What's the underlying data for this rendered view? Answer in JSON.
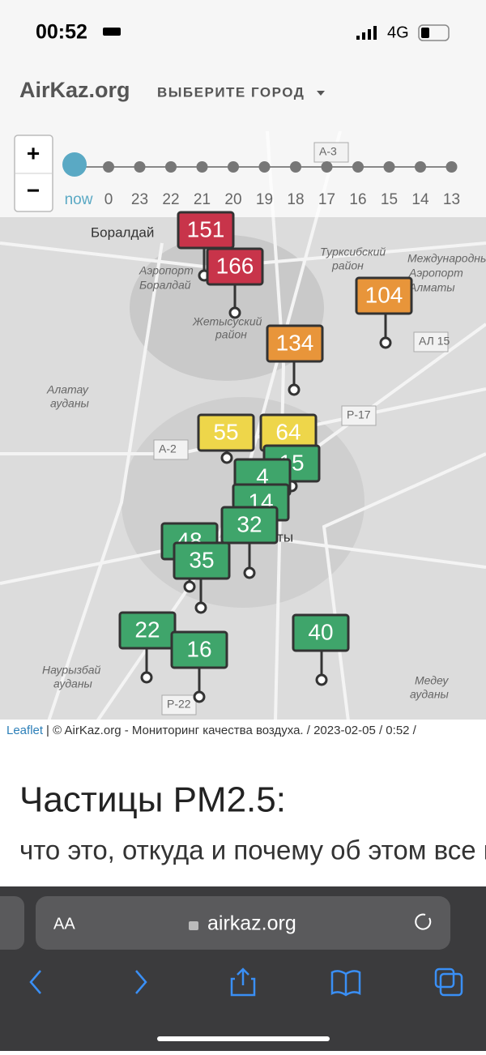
{
  "status_bar": {
    "time": "00:52",
    "network": "4G"
  },
  "header": {
    "logo": "AirKaz.org",
    "city_select": "ВЫБЕРИТЕ ГОРОД"
  },
  "zoom": {
    "plus": "+",
    "minus": "−"
  },
  "timeline": {
    "labels": [
      "now",
      "0",
      "23",
      "22",
      "21",
      "20",
      "19",
      "18",
      "17",
      "16",
      "15",
      "14",
      "13"
    ]
  },
  "map_labels": [
    "Боралдай",
    "Аэропорт",
    "Боралдай",
    "Турксибский",
    "район",
    "Международный",
    "Аэропорт",
    "Алматы",
    "Жетысуский",
    "район",
    "Алатау",
    "ауданы",
    "А-3",
    "А-2",
    "Р-17",
    "АЛ 15",
    "Алматы",
    "Наурызбай",
    "ауданы",
    "Медеу",
    "ауданы",
    "Р-22"
  ],
  "markers": [
    {
      "value": 151,
      "color": "#c8344a"
    },
    {
      "value": 166,
      "color": "#c8344a"
    },
    {
      "value": 104,
      "color": "#e8953a"
    },
    {
      "value": 134,
      "color": "#e8953a"
    },
    {
      "value": 55,
      "color": "#eed64a"
    },
    {
      "value": 64,
      "color": "#eed64a"
    },
    {
      "value": 15,
      "color": "#3fa56b"
    },
    {
      "value": 4,
      "color": "#3fa56b"
    },
    {
      "value": 14,
      "color": "#3fa56b"
    },
    {
      "value": 32,
      "color": "#3fa56b"
    },
    {
      "value": 48,
      "color": "#3fa56b"
    },
    {
      "value": 35,
      "color": "#3fa56b"
    },
    {
      "value": 22,
      "color": "#3fa56b"
    },
    {
      "value": 16,
      "color": "#3fa56b"
    },
    {
      "value": 40,
      "color": "#3fa56b"
    }
  ],
  "attribution": {
    "link": "Leaflet",
    "text": "| © AirKaz.org - Мониторинг качества воздуха. / 2023-02-05 / 0:52 /"
  },
  "article": {
    "heading": "Частицы PM2.5:",
    "subheading": "что это, откуда и почему об этом все говорят"
  },
  "browser": {
    "text_size": "AA",
    "url": "airkaz.org"
  }
}
